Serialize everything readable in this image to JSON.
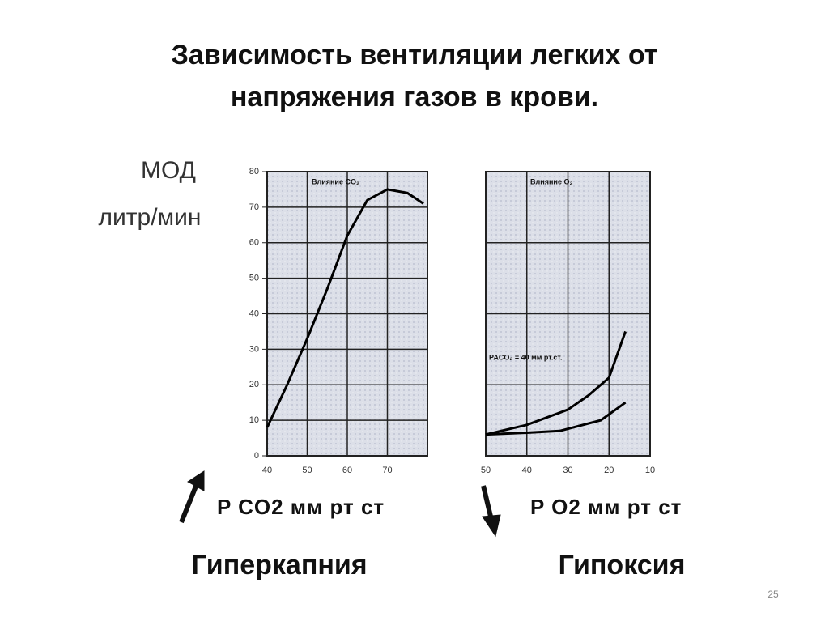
{
  "title_lines": [
    "Зависимость вентиляции легких от",
    "напряжения газов в крови."
  ],
  "y_unit_lines": [
    "МОД",
    "литр/мин"
  ],
  "page_number": "25",
  "chart_data": [
    {
      "type": "line",
      "title": "Влияние CO₂",
      "xlabel": "P CO2 мм рт ст",
      "caption": "Гиперкапния",
      "xlim": [
        40,
        80
      ],
      "xticks": [
        40,
        50,
        60,
        70
      ],
      "ylim": [
        0,
        80
      ],
      "yticks": [
        0,
        10,
        20,
        30,
        40,
        50,
        60,
        70,
        80
      ],
      "ytick_labels": true,
      "grid": true,
      "series": [
        {
          "color": "#000000",
          "x": [
            40,
            45,
            50,
            55,
            60,
            65,
            70,
            75,
            79
          ],
          "values": [
            8,
            20,
            33,
            47,
            62,
            72,
            75,
            74,
            71
          ]
        }
      ]
    },
    {
      "type": "line",
      "title": "Влияние O₂",
      "xlabel": "P O2 мм рт ст",
      "caption": "Гипоксия",
      "annotation": "PACO₂ = 40 мм рт.ст.",
      "xlim": [
        50,
        10
      ],
      "xticks": [
        50,
        40,
        30,
        20,
        10
      ],
      "ylim": [
        0,
        80
      ],
      "yticks": [
        0,
        20,
        40,
        60,
        80
      ],
      "ytick_labels": false,
      "grid": true,
      "series": [
        {
          "color": "#000000",
          "x": [
            50,
            40,
            30,
            25,
            20,
            16
          ],
          "values": [
            6,
            8.7,
            13,
            17,
            22,
            35
          ]
        },
        {
          "color": "#000000",
          "x": [
            50,
            40,
            32,
            22,
            16
          ],
          "values": [
            6,
            6.5,
            7,
            10,
            15
          ]
        }
      ]
    }
  ]
}
